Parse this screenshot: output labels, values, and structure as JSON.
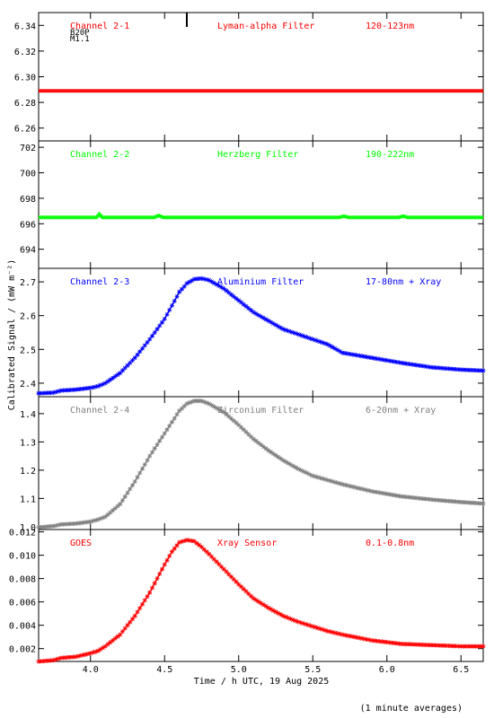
{
  "ylabel": "Calibrated Signal / (mW m⁻²)",
  "xlabel": "Time / h UTC, 19 Aug 2025",
  "footnote": "(1 minute averages)",
  "xlim": [
    3.65,
    6.65
  ],
  "xticks": [
    "4.0",
    "4.5",
    "5.0",
    "5.5",
    "6.0",
    "6.5"
  ],
  "colors": {
    "axis": "#000000",
    "red": "#ff0000",
    "green": "#00ff00",
    "blue": "#0000ff",
    "gray": "#808080"
  },
  "chart_data": [
    {
      "type": "line",
      "channel": "Channel 2-1",
      "filter": "Lyman-alpha Filter",
      "band": "120-123nm",
      "extra_label": "B20P",
      "extra_label2": "M1.1",
      "color": "#ff0000",
      "ylim": [
        6.25,
        6.35
      ],
      "yticks": [
        "6.26",
        "6.28",
        "6.30",
        "6.32",
        "6.34"
      ],
      "x": [
        3.65,
        6.65
      ],
      "y": [
        6.289,
        6.289
      ]
    },
    {
      "type": "line",
      "channel": "Channel 2-2",
      "filter": "Herzberg Filter",
      "band": "190-222nm",
      "color": "#00ff00",
      "ylim": [
        692.5,
        702.5
      ],
      "yticks": [
        "694",
        "696",
        "698",
        "700",
        "702"
      ],
      "x": [
        3.65,
        4.04,
        4.06,
        4.08,
        4.43,
        4.46,
        4.49,
        5.68,
        5.71,
        5.74,
        6.08,
        6.11,
        6.14,
        6.65
      ],
      "y": [
        696.5,
        696.5,
        696.75,
        696.5,
        696.5,
        696.65,
        696.5,
        696.5,
        696.6,
        696.5,
        696.5,
        696.6,
        696.5,
        696.5
      ]
    },
    {
      "type": "line",
      "channel": "Channel 2-3",
      "filter": "Aluminium Filter",
      "band": "17-80nm + Xray",
      "color": "#0000ff",
      "ylim": [
        2.36,
        2.74
      ],
      "yticks": [
        "2.4",
        "2.5",
        "2.6",
        "2.7"
      ],
      "x": [
        3.65,
        3.75,
        3.8,
        3.9,
        4.0,
        4.05,
        4.1,
        4.2,
        4.3,
        4.4,
        4.5,
        4.55,
        4.6,
        4.65,
        4.7,
        4.75,
        4.8,
        4.9,
        5.0,
        5.1,
        5.2,
        5.3,
        5.4,
        5.5,
        5.6,
        5.7,
        5.9,
        6.1,
        6.3,
        6.5,
        6.65
      ],
      "y": [
        2.37,
        2.372,
        2.378,
        2.381,
        2.386,
        2.391,
        2.4,
        2.43,
        2.475,
        2.53,
        2.59,
        2.63,
        2.67,
        2.695,
        2.708,
        2.71,
        2.705,
        2.68,
        2.645,
        2.61,
        2.585,
        2.56,
        2.545,
        2.53,
        2.515,
        2.49,
        2.475,
        2.46,
        2.447,
        2.44,
        2.437
      ]
    },
    {
      "type": "line",
      "channel": "Channel 2-4",
      "filter": "Zirconium Filter",
      "band": "6-20nm + Xray",
      "color": "#808080",
      "ylim": [
        0.99,
        1.46
      ],
      "yticks": [
        "1.0",
        "1.1",
        "1.2",
        "1.3",
        "1.4"
      ],
      "x": [
        3.65,
        3.75,
        3.8,
        3.9,
        4.0,
        4.05,
        4.1,
        4.2,
        4.3,
        4.4,
        4.5,
        4.55,
        4.6,
        4.65,
        4.7,
        4.75,
        4.8,
        4.9,
        5.0,
        5.1,
        5.2,
        5.3,
        5.4,
        5.5,
        5.6,
        5.7,
        5.9,
        6.1,
        6.3,
        6.5,
        6.65
      ],
      "y": [
        0.998,
        1.002,
        1.008,
        1.011,
        1.018,
        1.025,
        1.035,
        1.08,
        1.16,
        1.25,
        1.33,
        1.37,
        1.41,
        1.435,
        1.445,
        1.445,
        1.435,
        1.405,
        1.36,
        1.31,
        1.27,
        1.235,
        1.205,
        1.18,
        1.165,
        1.15,
        1.125,
        1.107,
        1.096,
        1.087,
        1.082
      ]
    },
    {
      "type": "line",
      "channel": "GOES",
      "filter": "Xray Sensor",
      "band": "0.1-0.8nm",
      "color": "#ff0000",
      "ylim": [
        0.0009,
        0.0122
      ],
      "yticks": [
        "0.002",
        "0.004",
        "0.006",
        "0.008",
        "0.010",
        "0.012"
      ],
      "x": [
        3.65,
        3.75,
        3.8,
        3.9,
        4.0,
        4.05,
        4.1,
        4.2,
        4.3,
        4.4,
        4.5,
        4.55,
        4.6,
        4.65,
        4.7,
        4.75,
        4.8,
        4.9,
        5.0,
        5.1,
        5.2,
        5.3,
        5.4,
        5.5,
        5.6,
        5.7,
        5.9,
        6.1,
        6.3,
        6.5,
        6.65
      ],
      "y": [
        0.0009,
        0.001,
        0.0012,
        0.0013,
        0.0016,
        0.0018,
        0.0022,
        0.0032,
        0.0048,
        0.0068,
        0.0092,
        0.0103,
        0.0111,
        0.0113,
        0.0112,
        0.0107,
        0.0101,
        0.0088,
        0.0075,
        0.0063,
        0.0055,
        0.0048,
        0.0043,
        0.0039,
        0.0035,
        0.0032,
        0.0027,
        0.0024,
        0.0023,
        0.0022,
        0.0022
      ]
    }
  ]
}
